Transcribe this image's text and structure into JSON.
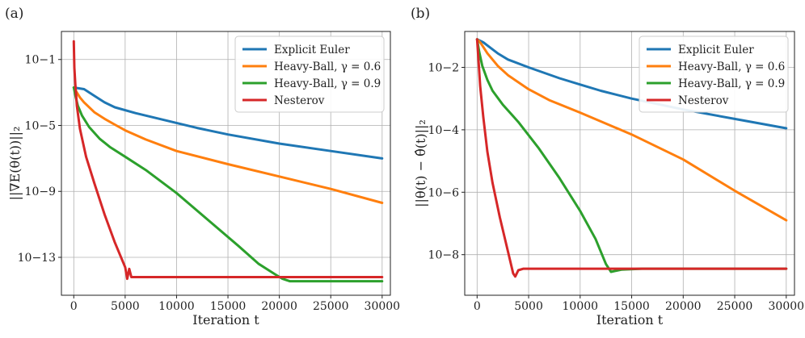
{
  "chart_data": [
    {
      "type": "line",
      "panel_label": "(a)",
      "xlabel": "Iteration t",
      "ylabel": "||∇E(θ(t))||₂",
      "yscale": "log",
      "xlim": [
        -1200,
        30800
      ],
      "ylim_log10": [
        -15.3,
        0.7
      ],
      "xticks": [
        0,
        5000,
        10000,
        15000,
        20000,
        25000,
        30000
      ],
      "xtick_labels": [
        "0",
        "5000",
        "10000",
        "15000",
        "20000",
        "25000",
        "30000"
      ],
      "yticks_log10": [
        -1,
        -5,
        -9,
        -13
      ],
      "ytick_labels": [
        "10−1",
        "10−5",
        "10−9",
        "10−13"
      ],
      "grid": true,
      "legend_position": "upper right",
      "series": [
        {
          "name": "Explicit Euler",
          "color": "#1f77b4",
          "x": [
            0,
            1000,
            2000,
            3000,
            4000,
            6000,
            8000,
            10000,
            12000,
            15000,
            20000,
            25000,
            30000
          ],
          "y_log10": [
            -2.7,
            -2.8,
            -3.2,
            -3.6,
            -3.9,
            -4.25,
            -4.55,
            -4.85,
            -5.15,
            -5.55,
            -6.1,
            -6.55,
            -7.0
          ]
        },
        {
          "name": "Heavy-Ball, γ = 0.6",
          "color": "#ff7f0e",
          "x": [
            0,
            600,
            1000,
            2000,
            3000,
            4000,
            5000,
            7000,
            10000,
            15000,
            20000,
            25000,
            30000
          ],
          "y_log10": [
            -2.7,
            -3.3,
            -3.6,
            -4.2,
            -4.6,
            -4.95,
            -5.3,
            -5.85,
            -6.55,
            -7.35,
            -8.1,
            -8.85,
            -9.7
          ]
        },
        {
          "name": "Heavy-Ball, γ = 0.9",
          "color": "#2ca02c",
          "x": [
            0,
            200,
            400,
            800,
            1500,
            2500,
            3500,
            5000,
            7000,
            10000,
            13000,
            16000,
            18000,
            19500,
            20300,
            21000,
            30000
          ],
          "y_log10": [
            -2.7,
            -3.3,
            -3.8,
            -4.4,
            -5.1,
            -5.8,
            -6.3,
            -6.9,
            -7.7,
            -9.1,
            -10.7,
            -12.3,
            -13.4,
            -14.0,
            -14.3,
            -14.45,
            -14.45
          ]
        },
        {
          "name": "Nesterov",
          "color": "#d62728",
          "x": [
            0,
            60,
            150,
            300,
            600,
            1200,
            2000,
            3000,
            4000,
            5000,
            5200,
            5400,
            5600,
            30000
          ],
          "y_log10": [
            0.1,
            -1.5,
            -2.5,
            -3.8,
            -5.2,
            -6.9,
            -8.5,
            -10.4,
            -12.1,
            -13.6,
            -14.3,
            -13.7,
            -14.2,
            -14.2
          ]
        }
      ]
    },
    {
      "type": "line",
      "panel_label": "(b)",
      "xlabel": "Iteration t",
      "ylabel": "||θ(t) − θ̂(t)||₂",
      "yscale": "log",
      "xlim": [
        -1200,
        30800
      ],
      "ylim_log10": [
        -9.3,
        -0.85
      ],
      "xticks": [
        0,
        5000,
        10000,
        15000,
        20000,
        25000,
        30000
      ],
      "xtick_labels": [
        "0",
        "5000",
        "10000",
        "15000",
        "20000",
        "25000",
        "30000"
      ],
      "yticks_log10": [
        -2,
        -4,
        -6,
        -8
      ],
      "ytick_labels": [
        "10−2",
        "10−4",
        "10−6",
        "10−8"
      ],
      "grid": true,
      "legend_position": "upper right",
      "series": [
        {
          "name": "Explicit Euler",
          "color": "#1f77b4",
          "x": [
            0,
            600,
            1200,
            2000,
            3000,
            5000,
            8000,
            10000,
            12000,
            15000,
            20000,
            25000,
            30000
          ],
          "y_log10": [
            -1.1,
            -1.2,
            -1.35,
            -1.55,
            -1.75,
            -2.0,
            -2.35,
            -2.55,
            -2.75,
            -3.0,
            -3.35,
            -3.65,
            -3.95
          ]
        },
        {
          "name": "Heavy-Ball, γ = 0.6",
          "color": "#ff7f0e",
          "x": [
            0,
            300,
            600,
            1000,
            2000,
            3000,
            5000,
            7000,
            10000,
            15000,
            20000,
            25000,
            30000
          ],
          "y_log10": [
            -1.1,
            -1.2,
            -1.35,
            -1.55,
            -1.95,
            -2.25,
            -2.7,
            -3.05,
            -3.45,
            -4.15,
            -4.95,
            -5.95,
            -6.9
          ]
        },
        {
          "name": "Heavy-Ball, γ = 0.9",
          "color": "#2ca02c",
          "x": [
            0,
            200,
            500,
            1000,
            1500,
            2500,
            4000,
            6000,
            8000,
            10000,
            11500,
            12500,
            13000,
            14000,
            16000,
            30000
          ],
          "y_log10": [
            -1.1,
            -1.5,
            -1.95,
            -2.4,
            -2.75,
            -3.2,
            -3.75,
            -4.6,
            -5.55,
            -6.6,
            -7.5,
            -8.3,
            -8.55,
            -8.48,
            -8.45,
            -8.45
          ]
        },
        {
          "name": "Nesterov",
          "color": "#d62728",
          "x": [
            0,
            100,
            300,
            600,
            1000,
            1500,
            2200,
            3000,
            3500,
            3700,
            4000,
            4500,
            30000
          ],
          "y_log10": [
            -1.1,
            -1.6,
            -2.6,
            -3.6,
            -4.7,
            -5.7,
            -6.8,
            -7.9,
            -8.6,
            -8.7,
            -8.5,
            -8.45,
            -8.45
          ]
        }
      ]
    }
  ]
}
